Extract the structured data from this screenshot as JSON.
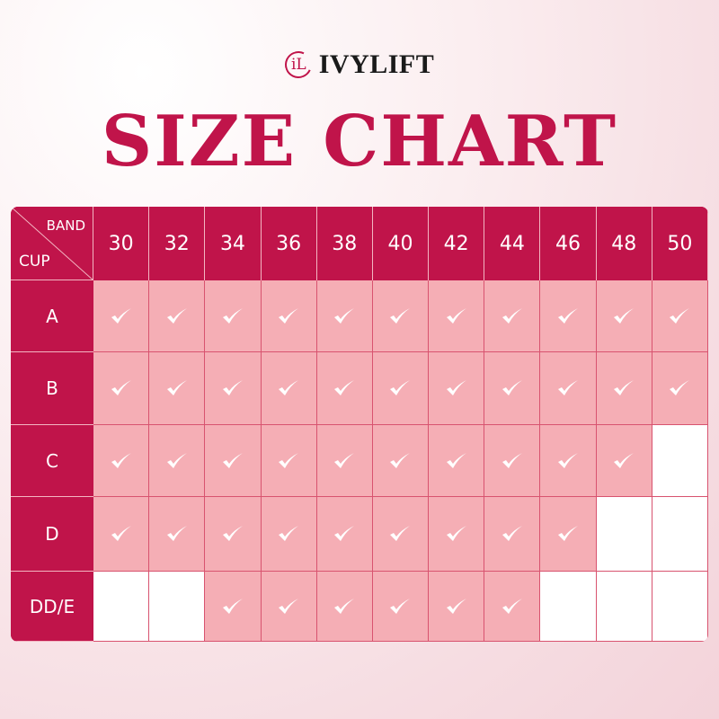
{
  "brand": {
    "logo_mark": "iL",
    "name": "IVYLIFT"
  },
  "title": "SIZE CHART",
  "table": {
    "corner_band": "BAND",
    "corner_cup": "CUP",
    "bands": [
      "30",
      "32",
      "34",
      "36",
      "38",
      "40",
      "42",
      "44",
      "46",
      "48",
      "50"
    ],
    "cups": [
      {
        "label": "A",
        "available": [
          true,
          true,
          true,
          true,
          true,
          true,
          true,
          true,
          true,
          true,
          true
        ]
      },
      {
        "label": "B",
        "available": [
          true,
          true,
          true,
          true,
          true,
          true,
          true,
          true,
          true,
          true,
          true
        ]
      },
      {
        "label": "C",
        "available": [
          true,
          true,
          true,
          true,
          true,
          true,
          true,
          true,
          true,
          true,
          false
        ]
      },
      {
        "label": "D",
        "available": [
          true,
          true,
          true,
          true,
          true,
          true,
          true,
          true,
          true,
          false,
          false
        ]
      },
      {
        "label": "DD/E",
        "available": [
          false,
          false,
          true,
          true,
          true,
          true,
          true,
          true,
          false,
          false,
          false
        ]
      }
    ],
    "check_icon": "check-icon"
  },
  "colors": {
    "accent": "#c0144a",
    "available": "#f5aeb5",
    "unavailable": "#ffffff"
  }
}
